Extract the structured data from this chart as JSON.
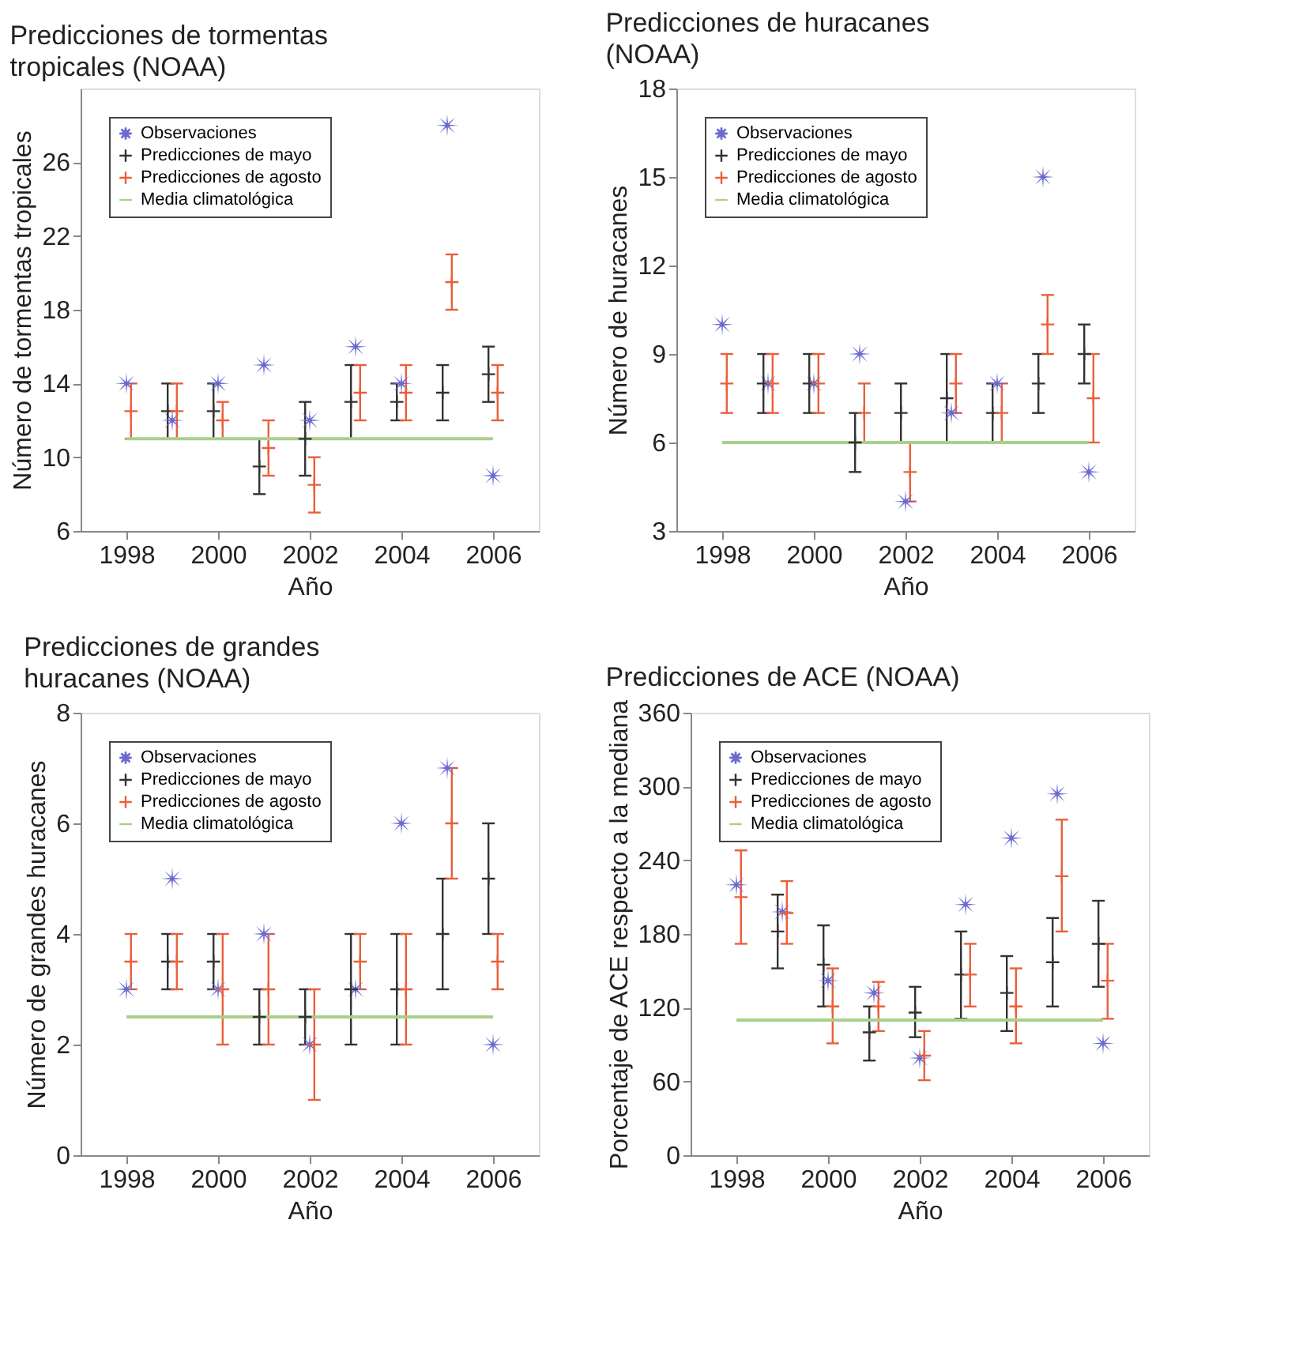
{
  "chart_data": [
    {
      "type": "scatter",
      "title": "Predicciones de tormentas tropicales (NOAA)",
      "xlabel": "Año",
      "ylabel": "Número de tormentas tropicales",
      "xlim": [
        1997,
        2007
      ],
      "xticks": [
        1998,
        2000,
        2002,
        2004,
        2006
      ],
      "ylim": [
        6,
        30
      ],
      "yticks": [
        6,
        10,
        14,
        18,
        22,
        26
      ],
      "legend": "top left",
      "grid": false,
      "series": [
        {
          "name": "Observaciones",
          "type": "scatter",
          "marker": "star",
          "color": "#6a6ad0",
          "x": [
            1998,
            1999,
            2000,
            2001,
            2002,
            2003,
            2004,
            2005,
            2006
          ],
          "values": [
            14,
            12,
            14,
            15,
            12,
            16,
            14,
            28,
            9
          ]
        },
        {
          "name": "Predicciones de mayo",
          "type": "scatter",
          "marker": "cross",
          "color": "#333333",
          "x": [
            1998.9,
            1999.9,
            2000.9,
            2001.9,
            2002.9,
            2003.9,
            2004.9,
            2005.9
          ],
          "values": [
            12.5,
            12.5,
            9.5,
            11,
            13,
            13,
            13.5,
            14.5
          ],
          "errors": [
            [
              11,
              14
            ],
            [
              11,
              14
            ],
            [
              8,
              11
            ],
            [
              9,
              13
            ],
            [
              11,
              15
            ],
            [
              12,
              14
            ],
            [
              12,
              15
            ],
            [
              13,
              16
            ]
          ]
        },
        {
          "name": "Predicciones de agosto",
          "type": "scatter",
          "marker": "cross",
          "color": "#e8603c",
          "x": [
            1998.1,
            1999.1,
            2000.1,
            2001.1,
            2002.1,
            2003.1,
            2004.1,
            2005.1,
            2006.1
          ],
          "values": [
            12.5,
            12.5,
            12,
            10.5,
            8.5,
            13.5,
            13.5,
            19.5,
            13.5
          ],
          "errors": [
            [
              11,
              14
            ],
            [
              11,
              14
            ],
            [
              11,
              13
            ],
            [
              9,
              12
            ],
            [
              7,
              10
            ],
            [
              12,
              15
            ],
            [
              12,
              15
            ],
            [
              18,
              21
            ],
            [
              12,
              15
            ]
          ]
        },
        {
          "name": "Media climatológica",
          "type": "line",
          "line_style": "solid",
          "color": "#a8d08d",
          "x": [
            1998,
            2006
          ],
          "values": [
            11,
            11
          ]
        }
      ]
    },
    {
      "type": "scatter",
      "title": "Predicciones de huracanes (NOAA)",
      "xlabel": "Año",
      "ylabel": "Número de huracanes",
      "xlim": [
        1997,
        2007
      ],
      "xticks": [
        1998,
        2000,
        2002,
        2004,
        2006
      ],
      "ylim": [
        3,
        18
      ],
      "yticks": [
        3,
        6,
        9,
        12,
        15,
        18
      ],
      "legend": "top left",
      "grid": false,
      "series": [
        {
          "name": "Observaciones",
          "type": "scatter",
          "marker": "star",
          "color": "#6a6ad0",
          "x": [
            1998,
            1999,
            2000,
            2001,
            2002,
            2003,
            2004,
            2005,
            2006
          ],
          "values": [
            10,
            8,
            8,
            9,
            4,
            7,
            8,
            15,
            5
          ]
        },
        {
          "name": "Predicciones de mayo",
          "type": "scatter",
          "marker": "cross",
          "color": "#333333",
          "x": [
            1998.9,
            1999.9,
            2000.9,
            2001.9,
            2002.9,
            2003.9,
            2004.9,
            2005.9
          ],
          "values": [
            8,
            8,
            6,
            7,
            7.5,
            7,
            8,
            9
          ],
          "errors": [
            [
              7,
              9
            ],
            [
              7,
              9
            ],
            [
              5,
              7
            ],
            [
              6,
              8
            ],
            [
              6,
              9
            ],
            [
              6,
              8
            ],
            [
              7,
              9
            ],
            [
              8,
              10
            ]
          ]
        },
        {
          "name": "Predicciones de agosto",
          "type": "scatter",
          "marker": "cross",
          "color": "#e8603c",
          "x": [
            1998.1,
            1999.1,
            2000.1,
            2001.1,
            2002.1,
            2003.1,
            2004.1,
            2005.1,
            2006.1
          ],
          "values": [
            8,
            8,
            8,
            7,
            5,
            8,
            7,
            10,
            7.5
          ],
          "errors": [
            [
              7,
              9
            ],
            [
              7,
              9
            ],
            [
              7,
              9
            ],
            [
              6,
              8
            ],
            [
              4,
              6
            ],
            [
              7,
              9
            ],
            [
              6,
              8
            ],
            [
              9,
              11
            ],
            [
              6,
              9
            ]
          ]
        },
        {
          "name": "Media climatológica",
          "type": "line",
          "line_style": "solid",
          "color": "#a8d08d",
          "x": [
            1998,
            2006
          ],
          "values": [
            6,
            6
          ]
        }
      ]
    },
    {
      "type": "scatter",
      "title": "Predicciones de grandes huracanes (NOAA)",
      "xlabel": "Año",
      "ylabel": "Número de grandes huracanes",
      "xlim": [
        1997,
        2007
      ],
      "xticks": [
        1998,
        2000,
        2002,
        2004,
        2006
      ],
      "ylim": [
        0,
        8
      ],
      "yticks": [
        0,
        2,
        4,
        6,
        8
      ],
      "legend": "top left",
      "grid": false,
      "series": [
        {
          "name": "Observaciones",
          "type": "scatter",
          "marker": "star",
          "color": "#6a6ad0",
          "x": [
            1998,
            1999,
            2000,
            2001,
            2002,
            2003,
            2004,
            2005,
            2006
          ],
          "values": [
            3,
            5,
            3,
            4,
            2,
            3,
            6,
            7,
            2
          ]
        },
        {
          "name": "Predicciones de mayo",
          "type": "scatter",
          "marker": "cross",
          "color": "#333333",
          "x": [
            1998.9,
            1999.9,
            2000.9,
            2001.9,
            2002.9,
            2003.9,
            2004.9,
            2005.9
          ],
          "values": [
            3.5,
            3.5,
            2.5,
            2.5,
            3,
            3,
            4,
            5
          ],
          "errors": [
            [
              3,
              4
            ],
            [
              3,
              4
            ],
            [
              2,
              3
            ],
            [
              2,
              3
            ],
            [
              2,
              4
            ],
            [
              2,
              4
            ],
            [
              3,
              5
            ],
            [
              4,
              6
            ]
          ]
        },
        {
          "name": "Predicciones de agosto",
          "type": "scatter",
          "marker": "cross",
          "color": "#e8603c",
          "x": [
            1998.1,
            1999.1,
            2000.1,
            2001.1,
            2002.1,
            2003.1,
            2004.1,
            2005.1,
            2006.1
          ],
          "values": [
            3.5,
            3.5,
            3,
            3,
            2,
            3.5,
            3,
            6,
            3.5
          ],
          "errors": [
            [
              3,
              4
            ],
            [
              3,
              4
            ],
            [
              2,
              4
            ],
            [
              2,
              4
            ],
            [
              1,
              3
            ],
            [
              3,
              4
            ],
            [
              2,
              4
            ],
            [
              5,
              7
            ],
            [
              3,
              4
            ]
          ]
        },
        {
          "name": "Media climatológica",
          "type": "line",
          "line_style": "solid",
          "color": "#a8d08d",
          "x": [
            1998,
            2006
          ],
          "values": [
            2.5,
            2.5
          ]
        }
      ]
    },
    {
      "type": "scatter",
      "title": "Predicciones de ACE (NOAA)",
      "xlabel": "Año",
      "ylabel": "Porcentaje de ACE respecto a la mediana",
      "xlim": [
        1997,
        2007
      ],
      "xticks": [
        1998,
        2000,
        2002,
        2004,
        2006
      ],
      "ylim": [
        0,
        360
      ],
      "yticks": [
        0,
        60,
        120,
        180,
        240,
        300,
        360
      ],
      "legend": "top left",
      "grid": false,
      "series": [
        {
          "name": "Observaciones",
          "type": "scatter",
          "marker": "star",
          "color": "#6a6ad0",
          "x": [
            1998,
            1999,
            2000,
            2001,
            2002,
            2003,
            2004,
            2005,
            2006
          ],
          "values": [
            220,
            198,
            142,
            132,
            79,
            204,
            258,
            294,
            91
          ]
        },
        {
          "name": "Predicciones de mayo",
          "type": "scatter",
          "marker": "cross",
          "color": "#333333",
          "x": [
            1998.9,
            1999.9,
            2000.9,
            2001.9,
            2002.9,
            2003.9,
            2004.9,
            2005.9
          ],
          "values": [
            182,
            155,
            100,
            116,
            147,
            132,
            157,
            172
          ],
          "errors": [
            [
              152,
              212
            ],
            [
              121,
              187
            ],
            [
              77,
              121
            ],
            [
              96,
              137
            ],
            [
              111,
              182
            ],
            [
              101,
              162
            ],
            [
              121,
              193
            ],
            [
              137,
              207
            ]
          ]
        },
        {
          "name": "Predicciones de agosto",
          "type": "scatter",
          "marker": "cross",
          "color": "#e8603c",
          "x": [
            1998.1,
            1999.1,
            2000.1,
            2001.1,
            2002.1,
            2003.1,
            2004.1,
            2005.1,
            2006.1
          ],
          "values": [
            210,
            197,
            121,
            121,
            81,
            147,
            121,
            227,
            142
          ],
          "errors": [
            [
              172,
              248
            ],
            [
              172,
              223
            ],
            [
              91,
              152
            ],
            [
              101,
              141
            ],
            [
              61,
              101
            ],
            [
              121,
              172
            ],
            [
              91,
              152
            ],
            [
              182,
              273
            ],
            [
              111,
              172
            ]
          ]
        },
        {
          "name": "Media climatológica",
          "type": "line",
          "line_style": "solid",
          "color": "#a8d08d",
          "x": [
            1998,
            2006
          ],
          "values": [
            110,
            110
          ]
        }
      ]
    }
  ]
}
